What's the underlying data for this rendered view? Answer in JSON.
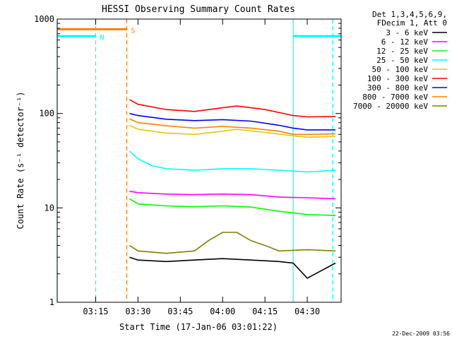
{
  "chart_data": {
    "type": "line",
    "title": "HESSI Observing Summary Count Rates",
    "xlabel": "Start Time (17-Jan-06 03:01:22)",
    "ylabel": "Count Rate (s⁻¹ detector⁻¹)",
    "xlim": [
      "03:01:22",
      "04:42:00"
    ],
    "ylim": [
      1,
      1000
    ],
    "yscale": "log",
    "x_ticks": [
      "03:15",
      "03:30",
      "03:45",
      "04:00",
      "04:15",
      "04:30"
    ],
    "y_ticks": [
      "1",
      "10",
      "100",
      "1000"
    ],
    "grid": false,
    "legend_position": "right",
    "legend_header": [
      "Det 1,3,4,5,6,9,",
      "FDecim 1, Att 0"
    ],
    "footer": "22-Dec-2009 03:56",
    "series": [
      {
        "name": "3 - 6 keV",
        "color": "#000000",
        "x": [
          "03:27",
          "03:30",
          "03:40",
          "03:50",
          "04:00",
          "04:10",
          "04:20",
          "04:25",
          "04:30",
          "04:40"
        ],
        "y": [
          3.0,
          2.8,
          2.7,
          2.8,
          2.9,
          2.8,
          2.7,
          2.6,
          1.8,
          2.6
        ]
      },
      {
        "name": "6 - 12 keV",
        "color": "#ff00ff",
        "x": [
          "03:27",
          "03:30",
          "03:40",
          "03:50",
          "04:00",
          "04:10",
          "04:20",
          "04:30",
          "04:40"
        ],
        "y": [
          15,
          14.5,
          14,
          13.8,
          14,
          13.8,
          13,
          12.8,
          12.5
        ]
      },
      {
        "name": "12 - 25 keV",
        "color": "#00ff00",
        "x": [
          "03:27",
          "03:30",
          "03:40",
          "03:50",
          "04:00",
          "04:10",
          "04:20",
          "04:30",
          "04:40"
        ],
        "y": [
          12.5,
          11,
          10.5,
          10.3,
          10.5,
          10.2,
          9.2,
          8.5,
          8.3
        ]
      },
      {
        "name": "25 - 50 keV",
        "color": "#00ffff",
        "x": [
          "03:27",
          "03:30",
          "03:35",
          "03:40",
          "03:50",
          "04:00",
          "04:10",
          "04:20",
          "04:30",
          "04:40"
        ],
        "y": [
          40,
          33,
          28,
          26,
          25,
          26,
          26,
          25,
          24,
          25
        ]
      },
      {
        "name": "50 - 100 keV",
        "color": "#e6c800",
        "x": [
          "03:27",
          "03:30",
          "03:40",
          "03:50",
          "04:00",
          "04:05",
          "04:15",
          "04:25",
          "04:30",
          "04:40"
        ],
        "y": [
          75,
          68,
          62,
          60,
          65,
          68,
          63,
          58,
          56,
          57
        ]
      },
      {
        "name": "100 - 300 keV",
        "color": "#ff0000",
        "x": [
          "03:27",
          "03:30",
          "03:40",
          "03:50",
          "04:00",
          "04:05",
          "04:15",
          "04:25",
          "04:30",
          "04:40"
        ],
        "y": [
          140,
          125,
          110,
          105,
          115,
          120,
          110,
          95,
          92,
          93
        ]
      },
      {
        "name": "300 - 800 keV",
        "color": "#0000ff",
        "x": [
          "03:27",
          "03:30",
          "03:40",
          "03:50",
          "04:00",
          "04:10",
          "04:20",
          "04:25",
          "04:30",
          "04:40"
        ],
        "y": [
          100,
          95,
          87,
          84,
          86,
          83,
          75,
          70,
          67,
          67
        ]
      },
      {
        "name": "800 - 7000 keV",
        "color": "#ff8000",
        "x": [
          "03:27",
          "03:30",
          "03:40",
          "03:50",
          "04:00",
          "04:10",
          "04:20",
          "04:25",
          "04:30",
          "04:40"
        ],
        "y": [
          88,
          80,
          74,
          70,
          73,
          70,
          65,
          60,
          60,
          61
        ]
      },
      {
        "name": "7000 - 20000 keV",
        "color": "#808000",
        "x": [
          "03:27",
          "03:30",
          "03:40",
          "03:50",
          "03:55",
          "04:00",
          "04:05",
          "04:10",
          "04:15",
          "04:20",
          "04:30",
          "04:40"
        ],
        "y": [
          4.0,
          3.5,
          3.3,
          3.5,
          4.5,
          5.5,
          5.5,
          4.5,
          4.0,
          3.5,
          3.6,
          3.5
        ]
      }
    ],
    "status_bars": [
      {
        "label": "N",
        "color": "#00ffff",
        "level": 660,
        "x": [
          [
            "03:01:22",
            "03:15"
          ],
          [
            "04:25",
            "04:42:00"
          ]
        ]
      },
      {
        "label": "S",
        "color": "#ff8000",
        "level": 780,
        "x": [
          [
            "03:01:22",
            "03:26"
          ]
        ]
      }
    ],
    "markers": [
      {
        "color": "#00ffff",
        "style": "solid",
        "x": "03:01:22"
      },
      {
        "color": "#00ffff",
        "style": "dashed",
        "x": "03:15"
      },
      {
        "color": "#ff8000",
        "style": "dashed",
        "x": "03:26"
      },
      {
        "color": "#00ffff",
        "style": "solid",
        "x": "04:25"
      },
      {
        "color": "#00ffff",
        "style": "dashed",
        "x": "04:39"
      }
    ]
  }
}
